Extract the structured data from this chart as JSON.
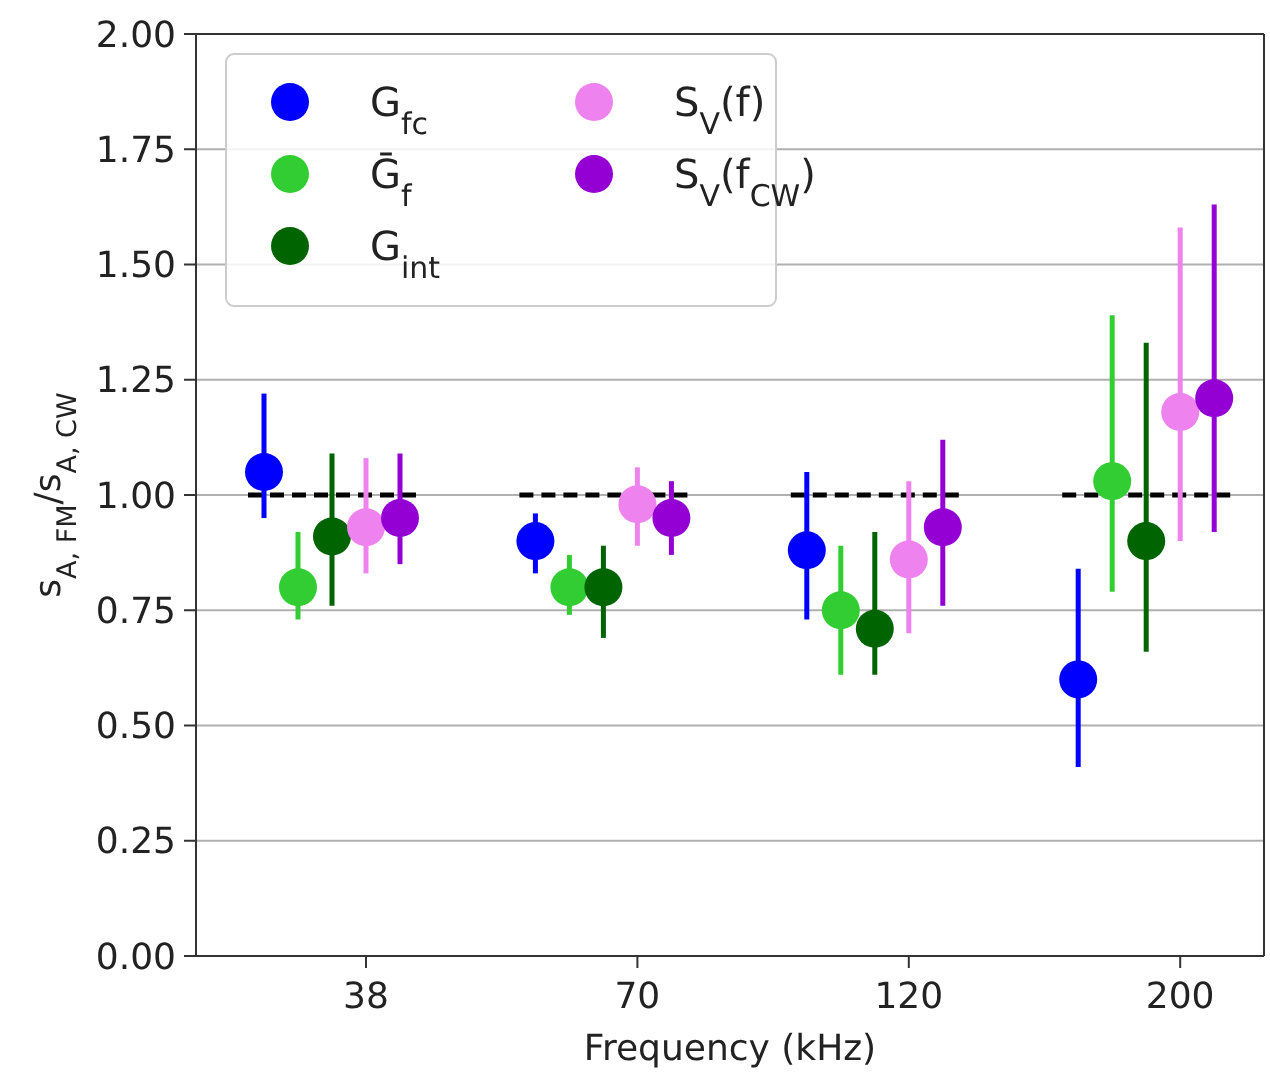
{
  "chart_data": {
    "type": "scatter",
    "xlabel": "Frequency (kHz)",
    "ylabel": "s$_{A, FM}$/s$_{A, CW}$",
    "categories": [
      "38",
      "70",
      "120",
      "200"
    ],
    "ylim": [
      0,
      2
    ],
    "yticks": [
      {
        "value": 0,
        "label": "0.00"
      },
      {
        "value": 0.25,
        "label": "0.25"
      },
      {
        "value": 0.5,
        "label": "0.50"
      },
      {
        "value": 0.75,
        "label": "0.75"
      },
      {
        "value": 1,
        "label": "1.00"
      },
      {
        "value": 1.25,
        "label": "1.25"
      },
      {
        "value": 1.5,
        "label": "1.50"
      },
      {
        "value": 1.75,
        "label": "1.75"
      },
      {
        "value": 2,
        "label": "2.00"
      }
    ],
    "grid": "y",
    "legend": "top left",
    "marker": "circle",
    "series": [
      {
        "name": "G$_{fc}$",
        "color": "#0000ff",
        "values": [
          1.05,
          0.9,
          0.88,
          0.6
        ],
        "errors": [
          [
            0.95,
            1.22
          ],
          [
            0.83,
            0.96
          ],
          [
            0.73,
            1.05
          ],
          [
            0.41,
            0.84
          ]
        ]
      },
      {
        "name": "Ḡ$_{f}$",
        "color": "#32cd32",
        "values": [
          0.8,
          0.8,
          0.75,
          1.03
        ],
        "errors": [
          [
            0.73,
            0.92
          ],
          [
            0.74,
            0.87
          ],
          [
            0.61,
            0.89
          ],
          [
            0.79,
            1.39
          ]
        ]
      },
      {
        "name": "G$_{int}$",
        "color": "#006400",
        "values": [
          0.91,
          0.8,
          0.71,
          0.9
        ],
        "errors": [
          [
            0.76,
            1.09
          ],
          [
            0.69,
            0.89
          ],
          [
            0.61,
            0.92
          ],
          [
            0.66,
            1.33
          ]
        ]
      },
      {
        "name": "S$_{V}$(f)",
        "color": "#ee82ee",
        "values": [
          0.93,
          0.98,
          0.86,
          1.18
        ],
        "errors": [
          [
            0.83,
            1.08
          ],
          [
            0.89,
            1.06
          ],
          [
            0.7,
            1.03
          ],
          [
            0.9,
            1.58
          ]
        ]
      },
      {
        "name": "S$_{V}$(f$_{CW}$)",
        "color": "#9400d3",
        "values": [
          0.95,
          0.95,
          0.93,
          1.21
        ],
        "errors": [
          [
            0.85,
            1.09
          ],
          [
            0.87,
            1.03
          ],
          [
            0.76,
            1.12
          ],
          [
            0.92,
            1.63
          ]
        ]
      }
    ],
    "ref_lines": [
      {
        "axis": "y",
        "value": 1,
        "color": "#000000",
        "line_style": "dashed"
      }
    ]
  }
}
